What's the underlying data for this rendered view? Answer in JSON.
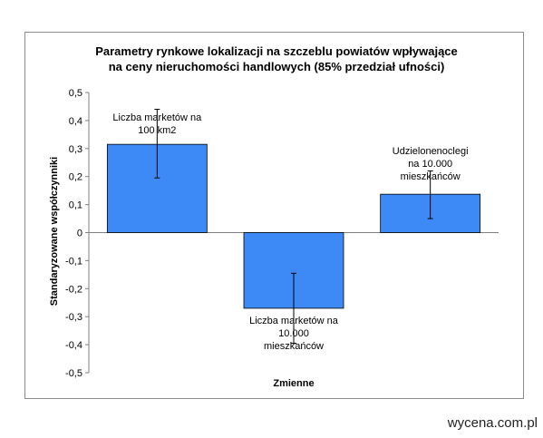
{
  "chart_data": {
    "type": "bar",
    "title_line1": "Parametry rynkowe lokalizacji na szczeblu powiatów wpływające",
    "title_line2": "na ceny nieruchomości handlowych (85% przedział ufności)",
    "xlabel": "Zmienne",
    "ylabel": "Standaryzowane współczynniki",
    "ylim": [
      -0.5,
      0.5
    ],
    "yticks": [
      "0,5",
      "0,4",
      "0,3",
      "0,2",
      "0,1",
      "0",
      "-0,1",
      "-0,2",
      "-0,3",
      "-0,4",
      "-0,5"
    ],
    "bar_color": "#3d8af7",
    "categories": [
      {
        "lines": [
          "Liczba marketów na",
          "100 km2"
        ],
        "value": 0.315,
        "ci_low": 0.195,
        "ci_high": 0.44
      },
      {
        "lines": [
          "Liczba marketów na",
          "10.000",
          "mieszkańców"
        ],
        "value": -0.27,
        "ci_low": -0.395,
        "ci_high": -0.145
      },
      {
        "lines": [
          "Udzielonenoclegi",
          "na 10.000",
          "mieszkańców"
        ],
        "value": 0.137,
        "ci_low": 0.05,
        "ci_high": 0.22
      }
    ],
    "grid": false,
    "legend": "none"
  },
  "footer": {
    "watermark": "wycena.com.pl"
  }
}
